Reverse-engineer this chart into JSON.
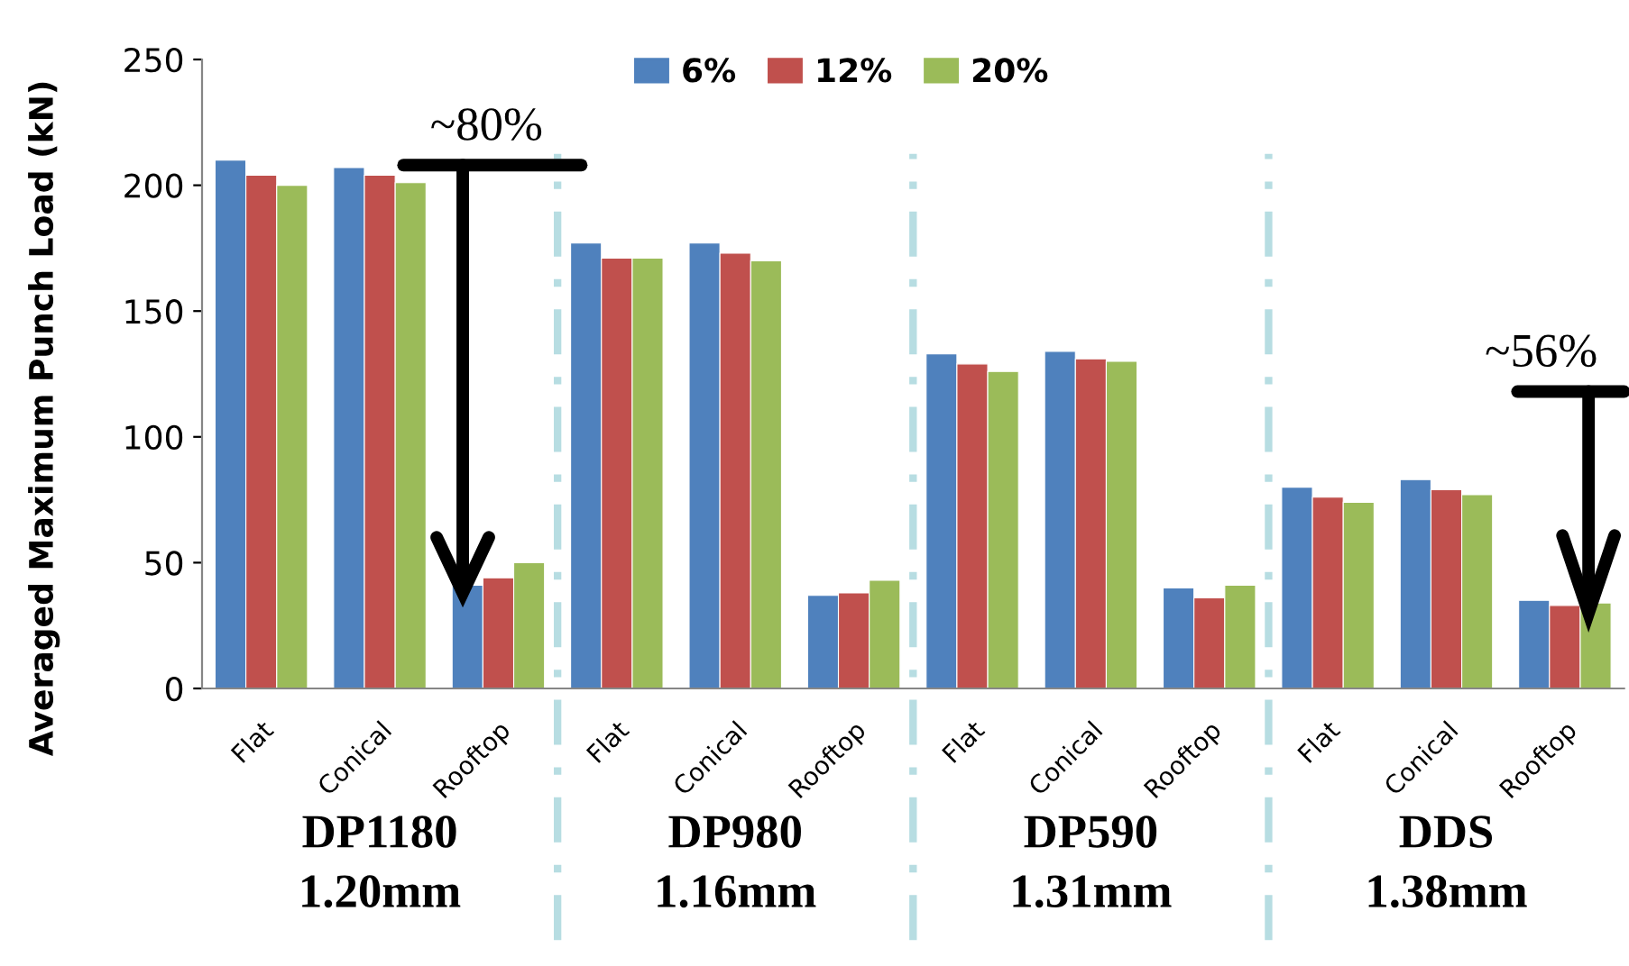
{
  "chart_data": {
    "type": "bar",
    "ylabel": "Averaged Maximum Punch Load (kN)",
    "categories": [
      "Flat",
      "Conical",
      "Rooftop",
      "Flat",
      "Conical",
      "Rooftop",
      "Flat",
      "Conical",
      "Rooftop",
      "Flat",
      "Conical",
      "Rooftop"
    ],
    "series": [
      {
        "name": "6%",
        "color": "#4f81bd",
        "values": [
          210,
          207,
          41,
          177,
          177,
          37,
          133,
          134,
          40,
          80,
          83,
          35
        ]
      },
      {
        "name": "12%",
        "color": "#c0504d",
        "values": [
          204,
          204,
          44,
          171,
          173,
          38,
          129,
          131,
          36,
          76,
          79,
          33
        ]
      },
      {
        "name": "20%",
        "color": "#9bbb59",
        "values": [
          200,
          201,
          50,
          171,
          170,
          43,
          126,
          130,
          41,
          74,
          77,
          34
        ]
      }
    ],
    "ylim": [
      0,
      250
    ],
    "yticks": [
      0,
      50,
      100,
      150,
      200,
      250
    ],
    "grid": false,
    "legend": "top",
    "annotations": [
      "DP1180\n1.20mm",
      "DP980\n1.16mm",
      "DP590\n1.31mm",
      "DDS\n1.38mm",
      "~80%",
      "~56%"
    ]
  }
}
